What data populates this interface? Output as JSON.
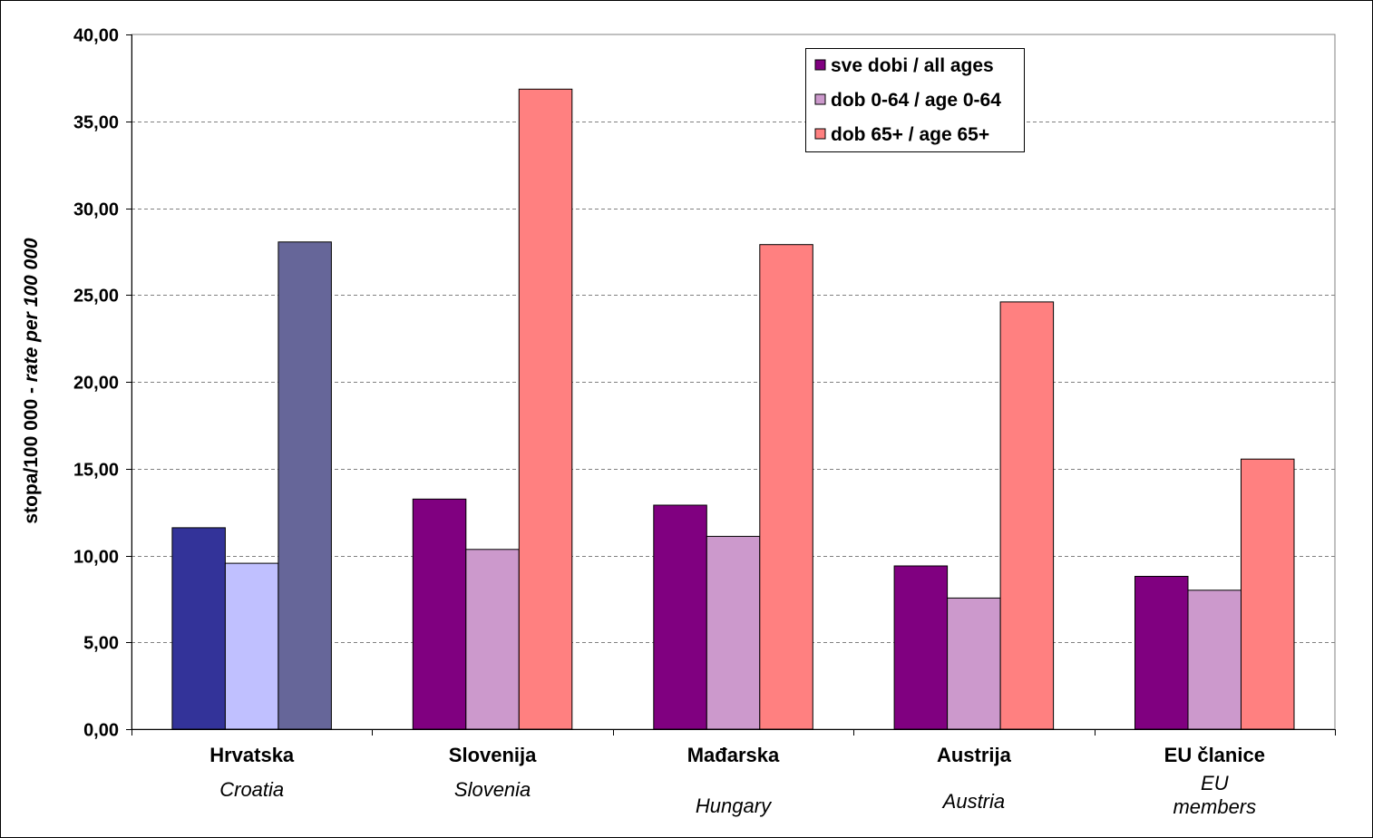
{
  "chart_data": {
    "type": "bar",
    "categories": [
      "Hrvatska",
      "Slovenija",
      "Mađarska",
      "Austrija",
      "EU članice"
    ],
    "category_subtitles": [
      "Croatia",
      "Slovenia",
      "Hungary",
      "Austria",
      "EU\nmembers"
    ],
    "series": [
      {
        "name": "sve dobi / all ages",
        "values": [
          11.6,
          13.25,
          12.9,
          9.4,
          8.8
        ],
        "color": "#800080",
        "highlight_color": "#333399"
      },
      {
        "name": "dob 0-64 / age 0-64",
        "values": [
          9.55,
          10.35,
          11.1,
          7.55,
          8.0
        ],
        "color": "#cc99cc",
        "highlight_color": "#c0c0ff"
      },
      {
        "name": "dob 65+ / age 65+",
        "values": [
          28.05,
          36.85,
          27.9,
          24.6,
          15.55
        ],
        "color": "#ff8080",
        "highlight_color": "#666699"
      }
    ],
    "highlight_category_index": 0,
    "ylabel_main": "stopa/100 000 - ",
    "ylabel_italic": "rate per 100 000",
    "ylim": [
      0,
      40
    ],
    "ytick_step": 5,
    "ytick_labels": [
      "0,00",
      "5,00",
      "10,00",
      "15,00",
      "20,00",
      "25,00",
      "30,00",
      "35,00",
      "40,00"
    ],
    "grid": true,
    "legend_position": "top-right"
  }
}
